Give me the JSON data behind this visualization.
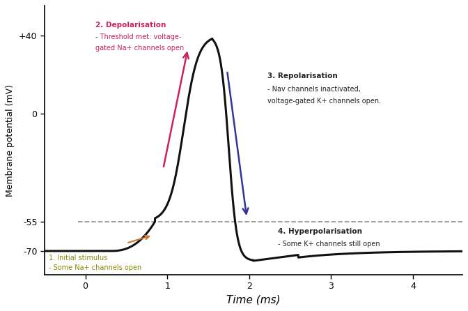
{
  "bg_color": "#ffffff",
  "xlim": [
    -0.5,
    4.6
  ],
  "ylim": [
    -82,
    55
  ],
  "yticks": [
    40,
    0,
    -55,
    -70
  ],
  "ytick_labels": [
    "+40",
    "0",
    "-55",
    "-70"
  ],
  "xticks": [
    0,
    1,
    2,
    3,
    4
  ],
  "xlabel": "Time (ms)",
  "ylabel": "Membrane potential (mV)",
  "threshold_y": -55,
  "resting_y": -70,
  "peak_y": 40,
  "arrow_depol_color": "#cc2255",
  "arrow_repol_color": "#333399",
  "arrow_orange_color": "#cc7733",
  "main_line_color": "#111111",
  "dashed_line_color": "#999999"
}
